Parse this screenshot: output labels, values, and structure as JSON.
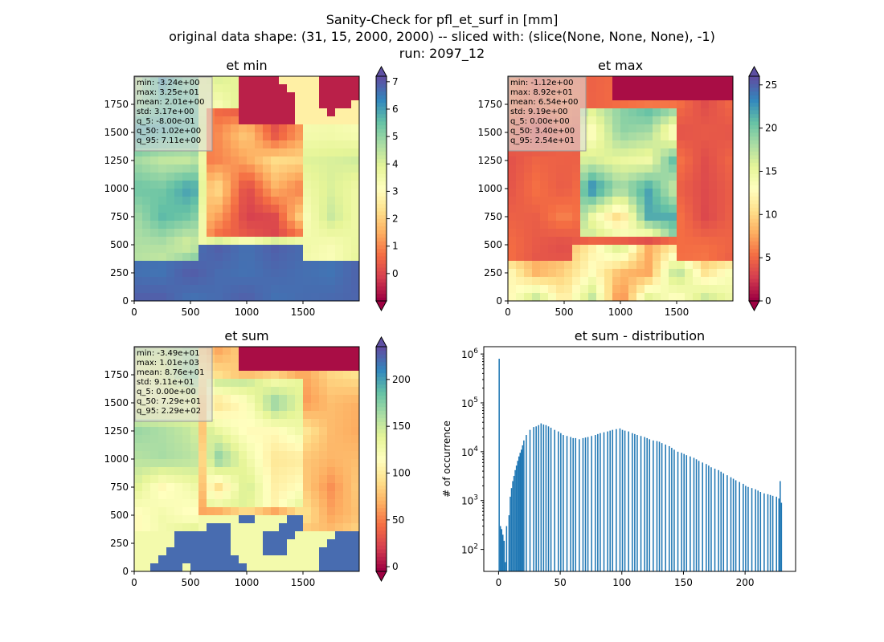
{
  "suptitle": {
    "line1": "Sanity-Check for pfl_et_surf in [mm]",
    "line2": "original data shape: (31, 15, 2000, 2000) -- sliced with: (slice(None, None, None), -1)",
    "line3": "run: 2097_12"
  },
  "colors": {
    "histogram_bar": "#1f77b4",
    "spectral_scale": [
      "#9e0142",
      "#d53e4f",
      "#f46d43",
      "#fdae61",
      "#fee08b",
      "#ffffbf",
      "#e6f598",
      "#abdda4",
      "#66c2a5",
      "#3288bd",
      "#5e4fa2"
    ]
  },
  "chart_data": [
    {
      "type": "heatmap",
      "title": "et min",
      "xlim": [
        0,
        2000
      ],
      "ylim": [
        0,
        2000
      ],
      "x_ticks": [
        0,
        500,
        1000,
        1500
      ],
      "y_ticks": [
        0,
        250,
        500,
        750,
        1000,
        1250,
        1500,
        1750
      ],
      "colorbar": {
        "colormap": "Spectral",
        "range": [
          -1,
          7.2
        ],
        "ticks": [
          0,
          1,
          2,
          3,
          4,
          5,
          6,
          7
        ],
        "extend": "both"
      },
      "stats": [
        "min: -3.24e+00",
        "max: 3.25e+01",
        "mean: 2.01e+00",
        "std: 3.17e+00",
        "q_5: -8.00e-01",
        "q_50: 1.02e+00",
        "q_95: 7.11e+00"
      ]
    },
    {
      "type": "heatmap",
      "title": "et max",
      "xlim": [
        0,
        2000
      ],
      "ylim": [
        0,
        2000
      ],
      "x_ticks": [
        0,
        500,
        1000,
        1500
      ],
      "y_ticks": [
        0,
        250,
        500,
        750,
        1000,
        1250,
        1500,
        1750
      ],
      "colorbar": {
        "colormap": "Spectral",
        "range": [
          0,
          26
        ],
        "ticks": [
          0,
          5,
          10,
          15,
          20,
          25
        ],
        "extend": "both"
      },
      "stats": [
        "min: -1.12e+00",
        "max: 8.92e+01",
        "mean: 6.54e+00",
        "std: 9.19e+00",
        "q_5: 0.00e+00",
        "q_50: 3.40e+00",
        "q_95: 2.54e+01"
      ]
    },
    {
      "type": "heatmap",
      "title": "et sum",
      "xlim": [
        0,
        2000
      ],
      "ylim": [
        0,
        2000
      ],
      "x_ticks": [
        0,
        500,
        1000,
        1500
      ],
      "y_ticks": [
        0,
        250,
        500,
        750,
        1000,
        1250,
        1500,
        1750
      ],
      "colorbar": {
        "colormap": "Spectral",
        "range": [
          -5,
          235
        ],
        "ticks": [
          0,
          50,
          100,
          150,
          200
        ],
        "extend": "both"
      },
      "stats": [
        "min: -3.49e+01",
        "max: 1.01e+03",
        "mean: 8.76e+01",
        "std: 9.11e+01",
        "q_5: 0.00e+00",
        "q_50: 7.29e+01",
        "q_95: 2.29e+02"
      ]
    },
    {
      "type": "bar",
      "title": "et sum - distribution",
      "xlabel": "",
      "ylabel": "# of occurrence",
      "xlim": [
        -12,
        241
      ],
      "ylim_log10": [
        1.55,
        6.15
      ],
      "x_ticks": [
        0,
        50,
        100,
        150,
        200
      ],
      "y_ticks_exp": [
        2,
        3,
        4,
        5,
        6
      ],
      "bin_width": 1,
      "bins": [
        [
          0,
          800000
        ],
        [
          1,
          300
        ],
        [
          2,
          260
        ],
        [
          3,
          200
        ],
        [
          4,
          150
        ],
        [
          5,
          55
        ],
        [
          6,
          300
        ],
        [
          8,
          500
        ],
        [
          9,
          1200
        ],
        [
          10,
          1800
        ],
        [
          11,
          2500
        ],
        [
          12,
          3200
        ],
        [
          13,
          4200
        ],
        [
          14,
          5200
        ],
        [
          15,
          6500
        ],
        [
          16,
          8000
        ],
        [
          17,
          9500
        ],
        [
          18,
          11000
        ],
        [
          19,
          13500
        ],
        [
          20,
          17000
        ],
        [
          22,
          22000
        ],
        [
          25,
          28000
        ],
        [
          28,
          32000
        ],
        [
          30,
          33000
        ],
        [
          32,
          35000
        ],
        [
          34,
          38000
        ],
        [
          36,
          36000
        ],
        [
          38,
          35000
        ],
        [
          40,
          33000
        ],
        [
          42,
          31000
        ],
        [
          45,
          28000
        ],
        [
          48,
          26000
        ],
        [
          50,
          24000
        ],
        [
          52,
          22000
        ],
        [
          55,
          21000
        ],
        [
          58,
          20000
        ],
        [
          60,
          19000
        ],
        [
          62,
          19000
        ],
        [
          65,
          18000
        ],
        [
          68,
          19000
        ],
        [
          70,
          19500
        ],
        [
          72,
          20000
        ],
        [
          75,
          21000
        ],
        [
          78,
          22000
        ],
        [
          80,
          23000
        ],
        [
          82,
          24000
        ],
        [
          85,
          25000
        ],
        [
          88,
          26000
        ],
        [
          90,
          27000
        ],
        [
          92,
          28000
        ],
        [
          95,
          29000
        ],
        [
          98,
          30000
        ],
        [
          100,
          28000
        ],
        [
          102,
          27000
        ],
        [
          105,
          26000
        ],
        [
          108,
          24000
        ],
        [
          110,
          23000
        ],
        [
          112,
          22000
        ],
        [
          115,
          21000
        ],
        [
          118,
          20000
        ],
        [
          120,
          19000
        ],
        [
          122,
          18000
        ],
        [
          125,
          17000
        ],
        [
          128,
          16500
        ],
        [
          130,
          16000
        ],
        [
          132,
          15000
        ],
        [
          135,
          14000
        ],
        [
          138,
          13000
        ],
        [
          140,
          12000
        ],
        [
          142,
          11000
        ],
        [
          145,
          10000
        ],
        [
          148,
          9500
        ],
        [
          150,
          9000
        ],
        [
          152,
          8500
        ],
        [
          155,
          8000
        ],
        [
          158,
          7500
        ],
        [
          160,
          7000
        ],
        [
          162,
          6500
        ],
        [
          165,
          6000
        ],
        [
          168,
          5600
        ],
        [
          170,
          5200
        ],
        [
          172,
          4800
        ],
        [
          175,
          4500
        ],
        [
          178,
          4200
        ],
        [
          180,
          3900
        ],
        [
          182,
          3600
        ],
        [
          185,
          3300
        ],
        [
          188,
          3000
        ],
        [
          190,
          2800
        ],
        [
          192,
          2600
        ],
        [
          195,
          2400
        ],
        [
          198,
          2200
        ],
        [
          200,
          2000
        ],
        [
          202,
          1900
        ],
        [
          205,
          1800
        ],
        [
          208,
          1700
        ],
        [
          210,
          1600
        ],
        [
          212,
          1500
        ],
        [
          215,
          1400
        ],
        [
          218,
          1350
        ],
        [
          220,
          1300
        ],
        [
          222,
          1250
        ],
        [
          225,
          1200
        ],
        [
          227,
          1100
        ],
        [
          228,
          2500
        ],
        [
          229,
          900
        ]
      ]
    }
  ]
}
